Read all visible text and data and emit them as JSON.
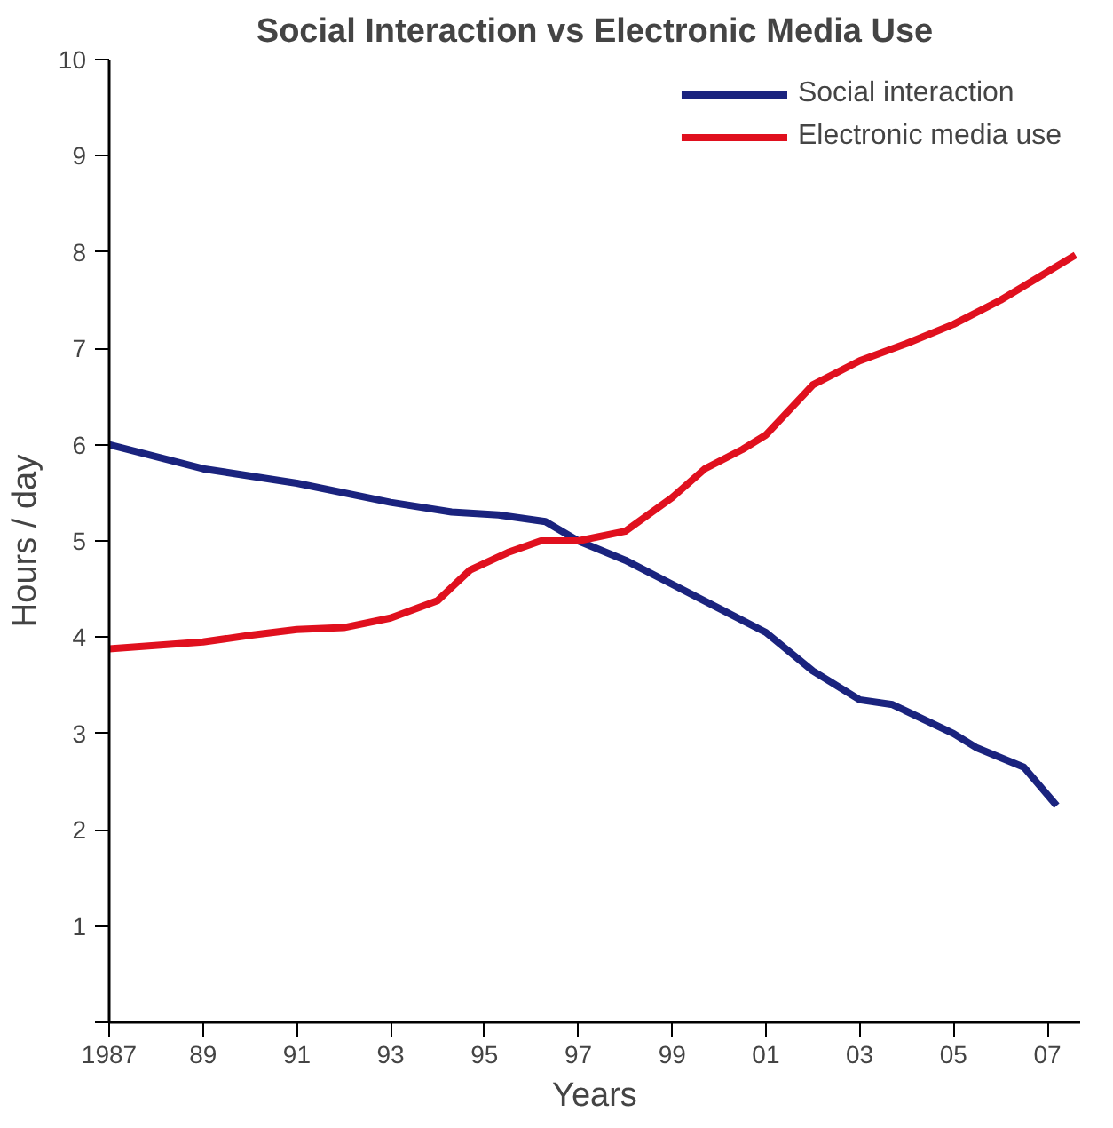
{
  "chart_data": {
    "type": "line",
    "title": "Social Interaction vs Electronic Media Use",
    "xlabel": "Years",
    "ylabel": "Hours / day",
    "xlim": [
      1987,
      2007.7
    ],
    "ylim": [
      0,
      10
    ],
    "xticks": [
      {
        "value": 1987,
        "label": "1987"
      },
      {
        "value": 1989,
        "label": "89"
      },
      {
        "value": 1991,
        "label": "91"
      },
      {
        "value": 1993,
        "label": "93"
      },
      {
        "value": 1995,
        "label": "95"
      },
      {
        "value": 1997,
        "label": "97"
      },
      {
        "value": 1999,
        "label": "99"
      },
      {
        "value": 2001,
        "label": "01"
      },
      {
        "value": 2003,
        "label": "03"
      },
      {
        "value": 2005,
        "label": "05"
      },
      {
        "value": 2007,
        "label": "07"
      }
    ],
    "yticks": [
      {
        "value": 0,
        "label": null
      },
      1,
      2,
      3,
      4,
      5,
      6,
      7,
      8,
      9,
      10
    ],
    "grid": false,
    "legend": "top right",
    "marker": "none",
    "line_style": "solid",
    "series": [
      {
        "name": "Social interaction",
        "color": "#1a237e",
        "x": [
          1987,
          1989,
          1991,
          1993,
          1994.3,
          1995.3,
          1996.3,
          1997,
          1998,
          1999,
          2000,
          2001,
          2002,
          2003,
          2003.7,
          2005,
          2005.5,
          2006.5,
          2007.2
        ],
        "values": [
          6.0,
          5.75,
          5.6,
          5.4,
          5.3,
          5.27,
          5.2,
          5.0,
          4.8,
          4.55,
          4.3,
          4.05,
          3.65,
          3.35,
          3.3,
          3.0,
          2.85,
          2.65,
          2.25
        ]
      },
      {
        "name": "Electronic media use",
        "color": "#e0101e",
        "x": [
          1987,
          1989,
          1990,
          1991,
          1992,
          1993,
          1994,
          1994.7,
          1995.5,
          1996.2,
          1997,
          1998,
          1999,
          1999.7,
          2000.5,
          2001,
          2002,
          2003,
          2004,
          2005,
          2006,
          2007.6
        ],
        "values": [
          3.88,
          3.95,
          4.02,
          4.08,
          4.1,
          4.2,
          4.38,
          4.7,
          4.88,
          5.0,
          5.0,
          5.1,
          5.45,
          5.75,
          5.95,
          6.1,
          6.62,
          6.87,
          7.05,
          7.25,
          7.5,
          7.97
        ]
      }
    ]
  }
}
